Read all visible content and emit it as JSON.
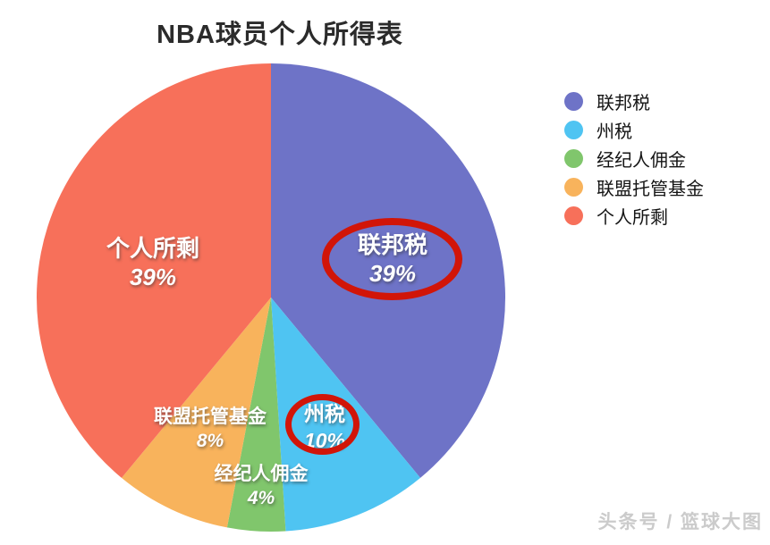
{
  "title": "NBA球员个人所得表",
  "watermark": "头条号 / 篮球大图",
  "chart_data": {
    "type": "pie",
    "title": "NBA球员个人所得表",
    "start_angle_deg": 0,
    "direction": "clockwise",
    "legend_position": "right",
    "slices": [
      {
        "name": "联邦税",
        "value": 39,
        "percent_label": "39%",
        "color": "#6e73c7"
      },
      {
        "name": "州税",
        "value": 10,
        "percent_label": "10%",
        "color": "#4fc4f2"
      },
      {
        "name": "经纪人佣金",
        "value": 4,
        "percent_label": "4%",
        "color": "#80c66c"
      },
      {
        "name": "联盟托管基金",
        "value": 8,
        "percent_label": "8%",
        "color": "#f8b35c"
      },
      {
        "name": "个人所剩",
        "value": 39,
        "percent_label": "39%",
        "color": "#f7705a"
      }
    ],
    "annotations": [
      {
        "target": "联邦税 39%",
        "shape": "red-ellipse"
      },
      {
        "target": "州税 10%",
        "shape": "red-ellipse"
      }
    ],
    "annotation_color": "#d11508"
  }
}
